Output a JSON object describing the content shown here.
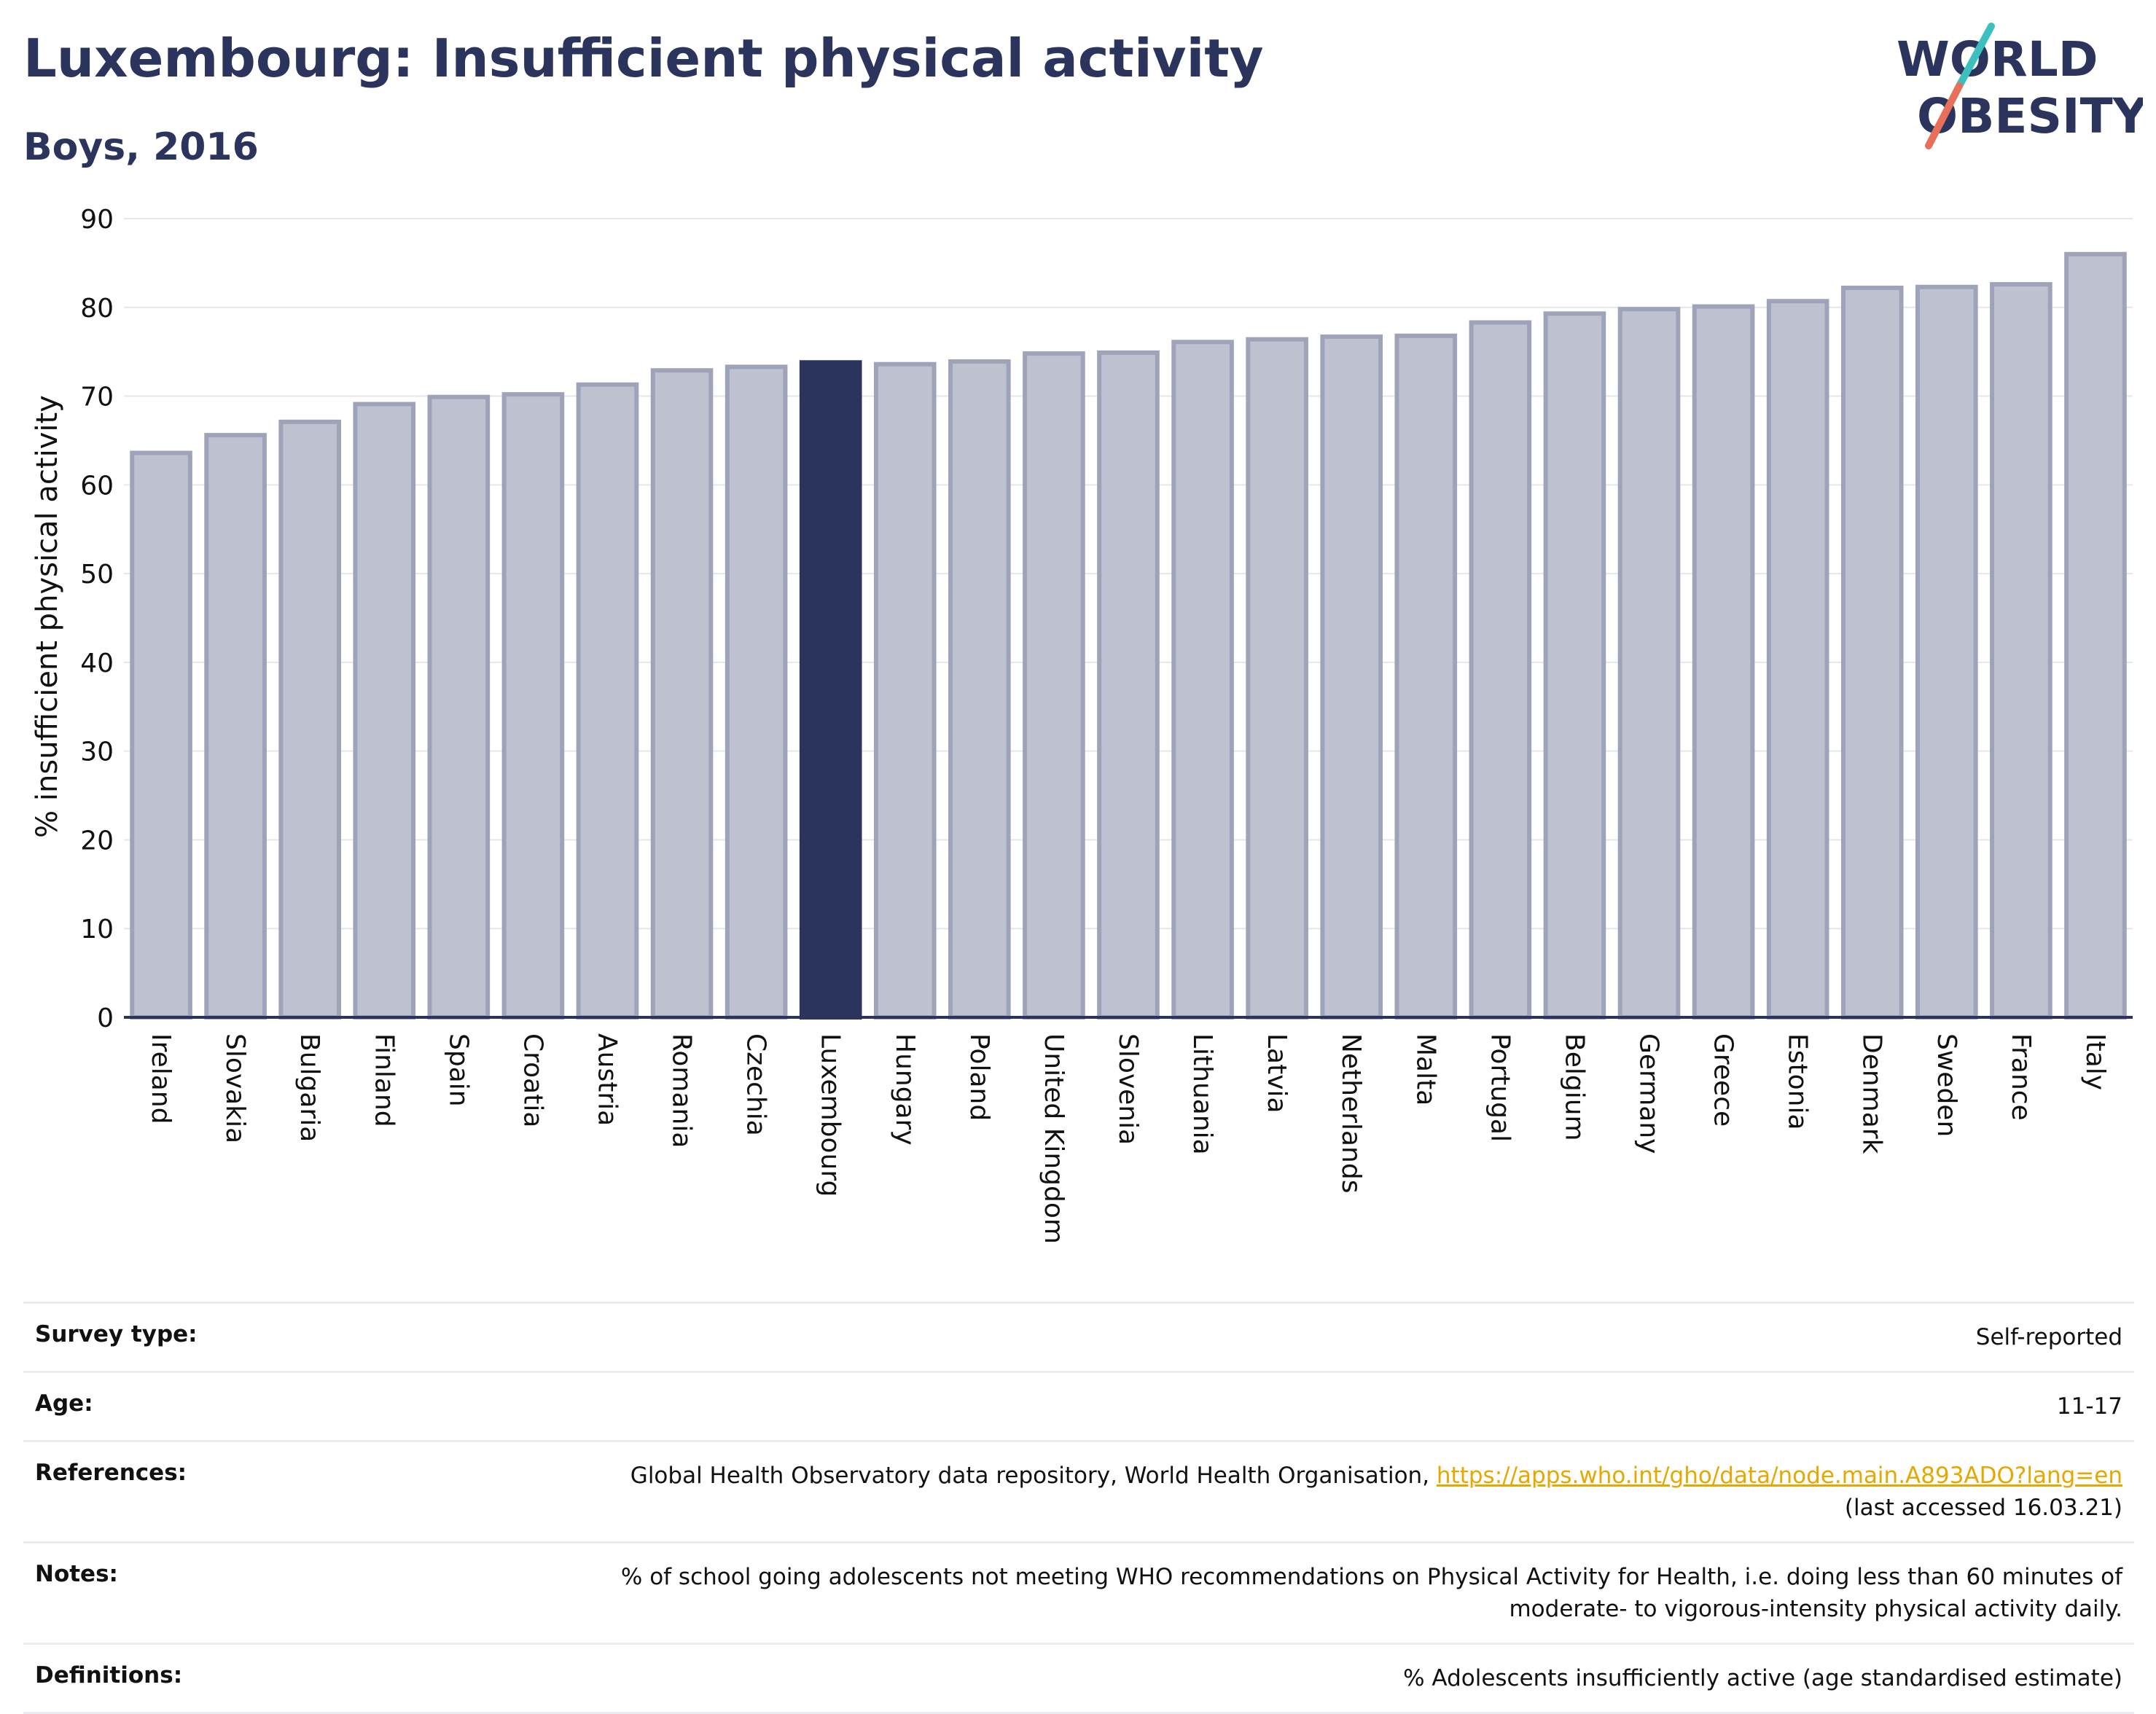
{
  "header": {
    "title": "Luxembourg: Insufficient physical activity",
    "subtitle": "Boys, 2016"
  },
  "logo": {
    "line1": "WORLD",
    "line2": "OBESITY",
    "colors": {
      "text": "#2b345d",
      "slash_top": "#3bbfbf",
      "slash_bottom": "#e8705a"
    }
  },
  "chart_data": {
    "type": "bar",
    "ylabel": "% insufficient physical activity",
    "ylim": [
      0,
      90
    ],
    "yticks": [
      0,
      10,
      20,
      30,
      40,
      50,
      60,
      70,
      80,
      90
    ],
    "highlight": "Luxembourg",
    "colors": {
      "bar": "#bec2d0",
      "bar_edge": "#9ea3ba",
      "highlight": "#2b345d"
    },
    "categories": [
      "Ireland",
      "Slovakia",
      "Bulgaria",
      "Finland",
      "Spain",
      "Croatia",
      "Austria",
      "Romania",
      "Czechia",
      "Luxembourg",
      "Hungary",
      "Poland",
      "United Kingdom",
      "Slovenia",
      "Lithuania",
      "Latvia",
      "Netherlands",
      "Malta",
      "Portugal",
      "Belgium",
      "Germany",
      "Greece",
      "Estonia",
      "Denmark",
      "Sweden",
      "France",
      "Italy"
    ],
    "values": [
      63.6,
      65.6,
      67.1,
      69.1,
      69.9,
      70.2,
      71.3,
      72.9,
      73.3,
      73.8,
      73.6,
      73.9,
      74.8,
      74.9,
      76.1,
      76.4,
      76.7,
      76.8,
      78.3,
      79.3,
      79.8,
      80.1,
      80.7,
      82.2,
      82.3,
      82.6,
      86.0
    ],
    "grid": true
  },
  "info": {
    "survey_type_label": "Survey type:",
    "survey_type_value": "Self-reported",
    "age_label": "Age:",
    "age_value": "11-17",
    "references_label": "References:",
    "references_text": "Global Health Observatory data repository, World Health Organisation, ",
    "references_link": "https://apps.who.int/gho/data/node.main.A893ADO?lang=en",
    "references_accessed": "(last accessed 16.03.21)",
    "notes_label": "Notes:",
    "notes_value": "% of school going adolescents not meeting WHO recommendations on Physical Activity for Health, i.e. doing less than 60 minutes of moderate- to vigorous-intensity physical activity daily.",
    "definitions_label": "Definitions:",
    "definitions_value": "% Adolescents insufficiently active (age standardised estimate)"
  }
}
